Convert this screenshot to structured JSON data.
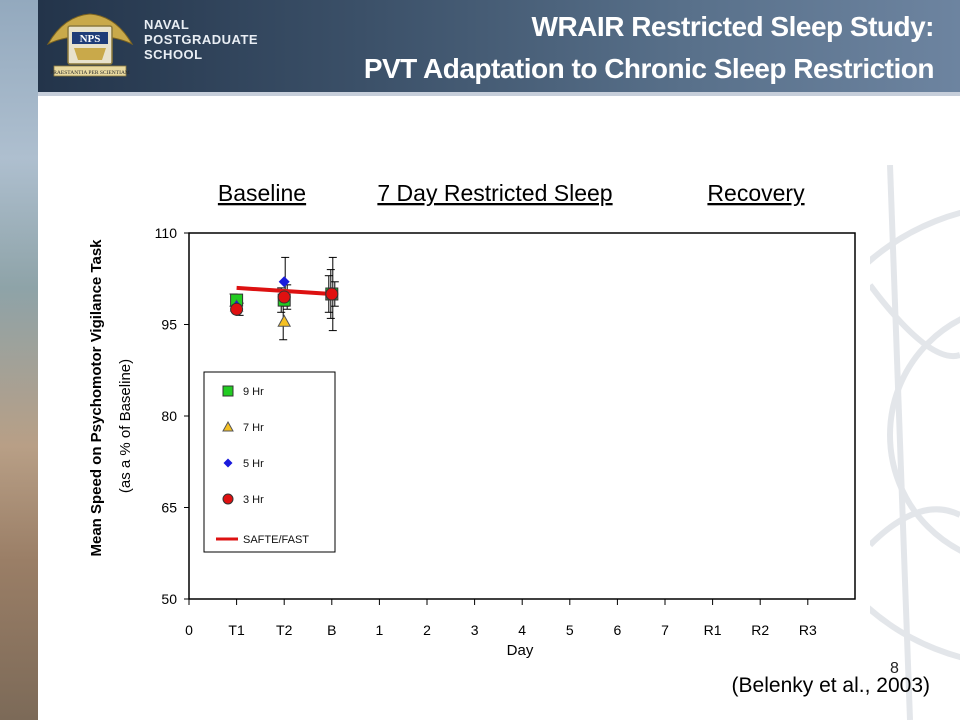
{
  "header": {
    "title_line1": "WRAIR Restricted Sleep Study:",
    "title_line2": "PVT Adaptation to Chronic Sleep Restriction",
    "school_line1": "NAVAL",
    "school_line2": "POSTGRADUATE",
    "school_line3": "SCHOOL",
    "logo_text": "NPS",
    "motto": "PRAESTANTIA PER SCIENTIAM"
  },
  "page_number": "8",
  "citation": "(Belenky et al., 2003)",
  "colors": {
    "header_dark": "#23344a",
    "series_9hr": "#22cc22",
    "series_7hr": "#f5c022",
    "series_5hr": "#1a1adc",
    "series_3hr": "#e01010",
    "safte_fast": "#dd1111"
  },
  "chart_data": {
    "type": "scatter",
    "phase_labels": [
      "Baseline",
      "7 Day Restricted Sleep",
      "Recovery"
    ],
    "xlabel": "Day",
    "ylabel": "Mean Speed on Psychomotor Vigilance Task",
    "ylabel_sub": "(as a % of Baseline)",
    "categories": [
      "0",
      "T1",
      "T2",
      "B",
      "1",
      "2",
      "3",
      "4",
      "5",
      "6",
      "7",
      "R1",
      "R2",
      "R3"
    ],
    "ylim": [
      50,
      110
    ],
    "yticks": [
      "110",
      "95",
      "80",
      "65",
      "50"
    ],
    "grid": false,
    "legend_position": "left",
    "series": [
      {
        "name": "9 Hr",
        "marker": "square",
        "points": [
          {
            "x": "T1",
            "y": 99,
            "err": 1
          },
          {
            "x": "T2",
            "y": 99,
            "err": 2
          },
          {
            "x": "B",
            "y": 100,
            "err": 3
          }
        ]
      },
      {
        "name": "7 Hr",
        "marker": "triangle",
        "points": [
          {
            "x": "T1",
            "y": 98,
            "err": 1
          },
          {
            "x": "T2",
            "y": 95.5,
            "err": 3
          },
          {
            "x": "B",
            "y": 100,
            "err": 4
          }
        ]
      },
      {
        "name": "5 Hr",
        "marker": "diamond",
        "points": [
          {
            "x": "T1",
            "y": 98,
            "err": 1
          },
          {
            "x": "T2",
            "y": 102,
            "err": 4
          },
          {
            "x": "B",
            "y": 100,
            "err": 6
          }
        ]
      },
      {
        "name": "3 Hr",
        "marker": "circle",
        "points": [
          {
            "x": "T1",
            "y": 97.5,
            "err": 1
          },
          {
            "x": "T2",
            "y": 99.5,
            "err": 2
          },
          {
            "x": "B",
            "y": 100,
            "err": 2
          }
        ]
      }
    ],
    "model_line": {
      "name": "SAFTE/FAST",
      "points": [
        {
          "x": "T1",
          "y": 101
        },
        {
          "x": "B",
          "y": 100
        }
      ]
    }
  }
}
